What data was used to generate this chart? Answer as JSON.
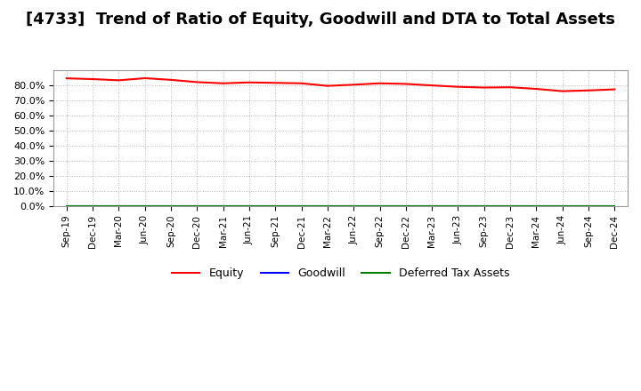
{
  "title": "[4733]  Trend of Ratio of Equity, Goodwill and DTA to Total Assets",
  "x_labels": [
    "Sep-19",
    "Dec-19",
    "Mar-20",
    "Jun-20",
    "Sep-20",
    "Dec-20",
    "Mar-21",
    "Jun-21",
    "Sep-21",
    "Dec-21",
    "Mar-22",
    "Jun-22",
    "Sep-22",
    "Dec-22",
    "Mar-23",
    "Jun-23",
    "Sep-23",
    "Dec-23",
    "Mar-24",
    "Jun-24",
    "Sep-24",
    "Dec-24"
  ],
  "equity": [
    84.5,
    84.0,
    83.2,
    84.6,
    83.5,
    82.0,
    81.2,
    81.8,
    81.5,
    81.2,
    79.5,
    80.3,
    81.2,
    80.8,
    79.8,
    78.9,
    78.4,
    78.6,
    77.5,
    76.0,
    76.5,
    77.2
  ],
  "goodwill": [
    0.0,
    0.0,
    0.0,
    0.0,
    0.0,
    0.0,
    0.0,
    0.0,
    0.0,
    0.0,
    0.0,
    0.0,
    0.0,
    0.0,
    0.0,
    0.0,
    0.0,
    0.0,
    0.0,
    0.0,
    0.0,
    0.0
  ],
  "dta": [
    0.0,
    0.0,
    0.0,
    0.0,
    0.0,
    0.0,
    0.0,
    0.0,
    0.0,
    0.0,
    0.0,
    0.0,
    0.0,
    0.0,
    0.0,
    0.0,
    0.0,
    0.0,
    0.0,
    0.0,
    0.0,
    0.0
  ],
  "equity_color": "#ff0000",
  "goodwill_color": "#0000ff",
  "dta_color": "#008000",
  "ylim": [
    0,
    90
  ],
  "yticks": [
    0,
    10,
    20,
    30,
    40,
    50,
    60,
    70,
    80
  ],
  "background_color": "#ffffff",
  "plot_bg_color": "#ffffff",
  "grid_color": "#aaaaaa",
  "title_fontsize": 13,
  "legend_labels": [
    "Equity",
    "Goodwill",
    "Deferred Tax Assets"
  ]
}
